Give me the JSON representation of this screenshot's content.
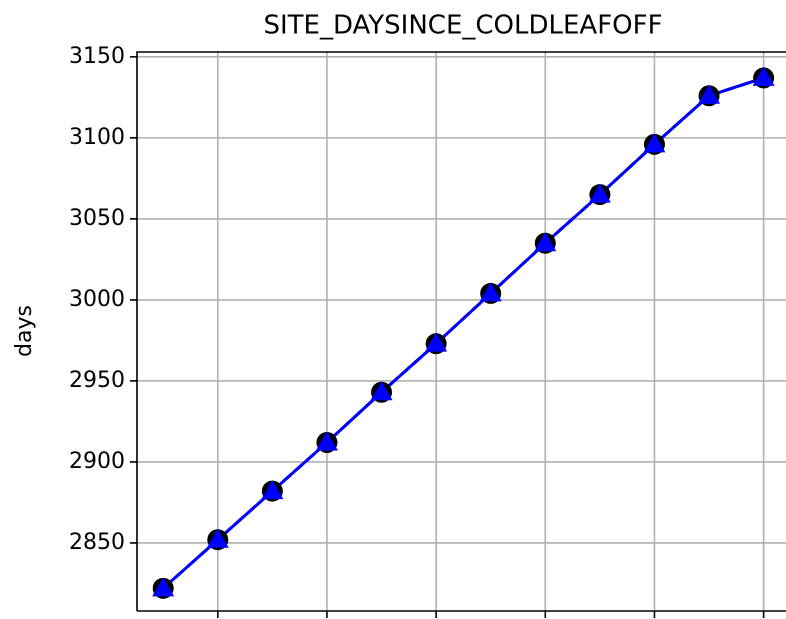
{
  "chart_data": {
    "type": "line",
    "title": "SITE_DAYSINCE_COLDLEAFOFF",
    "y_label": "days",
    "x": [
      0,
      1,
      2,
      3,
      4,
      5,
      6,
      7,
      8,
      9,
      10,
      11
    ],
    "xlim": [
      -0.48,
      11.41
    ],
    "xticks": [
      1,
      3,
      5,
      7,
      9,
      11
    ],
    "ylim": [
      2808,
      3153
    ],
    "yticks": [
      2850,
      2900,
      2950,
      3000,
      3050,
      3100,
      3150
    ],
    "grid": true,
    "series": [
      {
        "color": "#000000",
        "marker": "circle",
        "linestyle": "dashed",
        "values": [
          2822,
          2852,
          2882,
          2912,
          2943,
          2973,
          3004,
          3035,
          3065,
          3096,
          3126,
          3137
        ]
      },
      {
        "color": "#0000ff",
        "marker": "triangle",
        "linestyle": "solid",
        "values": [
          2822,
          2852,
          2882,
          2912,
          2943,
          2973,
          3004,
          3035,
          3065,
          3096,
          3126,
          3137
        ]
      }
    ]
  }
}
